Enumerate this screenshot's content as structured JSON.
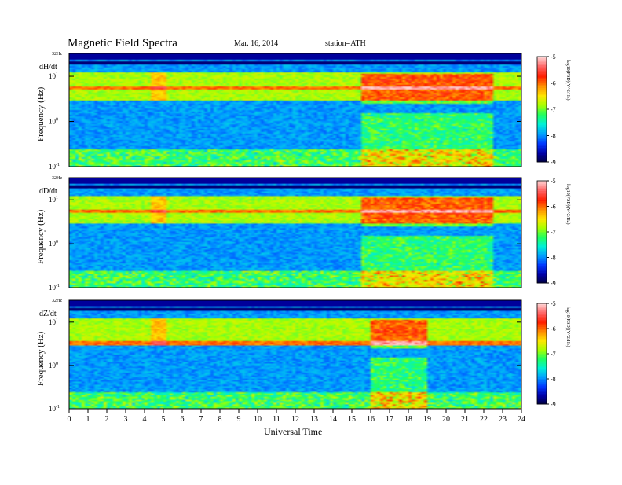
{
  "header": {
    "title": "Magnetic  Field  Spectra",
    "date": "Mar. 16, 2014",
    "station": "station=ATH"
  },
  "colors": {
    "background": "#00106e",
    "colormap": [
      "#00003c",
      "#0000a8",
      "#0038ff",
      "#00a0ff",
      "#00f0d8",
      "#20ff60",
      "#a8ff00",
      "#ffe600",
      "#ff8c00",
      "#ff1e00",
      "#ff6060",
      "#ffd0d0"
    ]
  },
  "chart_data": [
    {
      "type": "heatmap",
      "panel_label": "dH/dt",
      "ylabel": "Frequency  (Hz)",
      "top_label": "32Hz",
      "y_ticks": [
        "10^-1",
        "10^0",
        "10^1"
      ],
      "ylim_hz": [
        0.1,
        32
      ],
      "xlim_hours": [
        0,
        24
      ],
      "colorbar": {
        "label": "log10(PSD)(V^2/Hz)",
        "ticks": [
          "-5",
          "-6",
          "-7",
          "-8",
          "-9"
        ],
        "range": [
          -9,
          -5
        ]
      },
      "strong_activity_hours": [
        15.5,
        22.5
      ],
      "resonance_band_hz": 5.5
    },
    {
      "type": "heatmap",
      "panel_label": "dD/dt",
      "ylabel": "Frequency  (Hz)",
      "top_label": "32Hz",
      "y_ticks": [
        "10^-1",
        "10^0",
        "10^1"
      ],
      "ylim_hz": [
        0.1,
        32
      ],
      "xlim_hours": [
        0,
        24
      ],
      "colorbar": {
        "label": "log10(PSD)(V^2/Hz)",
        "ticks": [
          "-5",
          "-6",
          "-7",
          "-8",
          "-9"
        ],
        "range": [
          -9,
          -5
        ]
      },
      "strong_activity_hours": [
        15.5,
        22.5
      ],
      "resonance_band_hz": 5.5
    },
    {
      "type": "heatmap",
      "panel_label": "dZ/dt",
      "ylabel": "Frequency  (Hz)",
      "top_label": "32Hz",
      "y_ticks": [
        "10^-1",
        "10^0",
        "10^1"
      ],
      "ylim_hz": [
        0.1,
        32
      ],
      "xlim_hours": [
        0,
        24
      ],
      "colorbar": {
        "label": "log10(PSD)(V^2/Hz)",
        "ticks": [
          "-5",
          "-6",
          "-7",
          "-8",
          "-9"
        ],
        "range": [
          -9,
          -5
        ]
      },
      "strong_activity_hours": [
        16,
        19
      ],
      "resonance_band_hz": 3.2
    }
  ],
  "x_axis": {
    "label": "Universal Time",
    "ticks": [
      "0",
      "1",
      "2",
      "3",
      "4",
      "5",
      "6",
      "7",
      "8",
      "9",
      "10",
      "11",
      "12",
      "13",
      "14",
      "15",
      "16",
      "17",
      "18",
      "19",
      "20",
      "21",
      "22",
      "23",
      "24"
    ]
  }
}
